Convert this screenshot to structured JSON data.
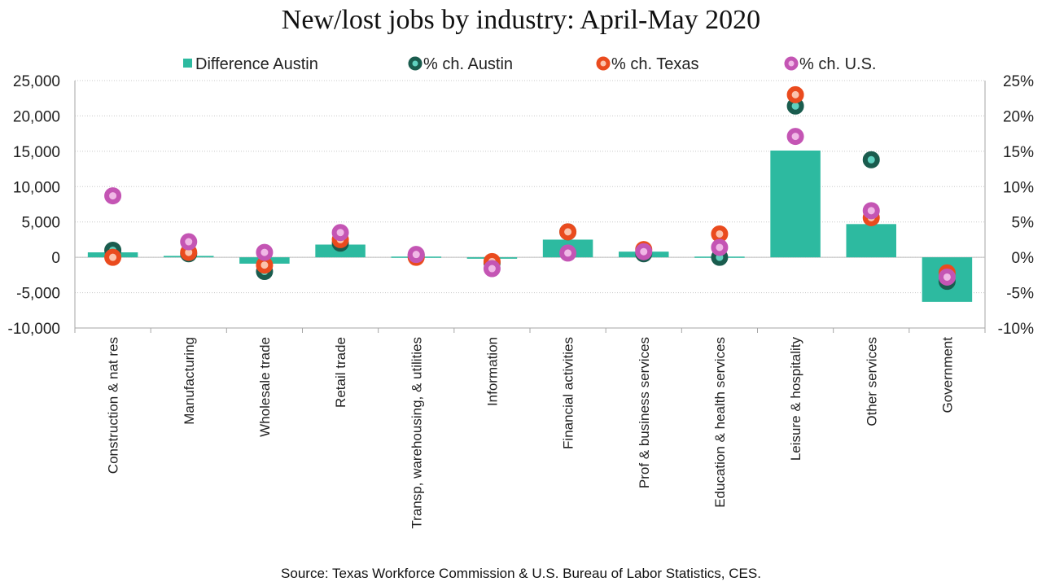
{
  "chart_data": {
    "type": "bar",
    "title": "New/lost jobs by industry: April-May 2020",
    "source": "Source: Texas Workforce Commission & U.S. Bureau of Labor Statistics, CES.",
    "categories": [
      "Construction & nat res",
      "Manufacturing",
      "Wholesale trade",
      "Retail trade",
      "Transp, warehousing, & utilities",
      "Information",
      "Financial activities",
      "Prof & business services",
      "Education & health services",
      "Leisure & hospitality",
      "Other services",
      "Government"
    ],
    "bar_series": {
      "name": "Difference Austin",
      "color": "#2dbaa0",
      "axis": "left",
      "values": [
        700,
        200,
        -900,
        1800,
        100,
        -200,
        2500,
        800,
        100,
        15100,
        4700,
        -6300
      ]
    },
    "point_series": [
      {
        "name": "% ch. Austin",
        "color": "#1a5c4e",
        "axis": "right",
        "values": [
          1.0,
          0.5,
          -2.0,
          2.0,
          0.3,
          -0.8,
          3.6,
          0.5,
          0.0,
          21.4,
          13.8,
          -3.4
        ]
      },
      {
        "name": "% ch. Texas",
        "color": "#ea4b1e",
        "axis": "right",
        "values": [
          0.0,
          0.7,
          -1.1,
          2.5,
          0.0,
          -0.6,
          3.6,
          1.1,
          3.3,
          23.0,
          5.6,
          -2.2
        ]
      },
      {
        "name": "% ch. U.S.",
        "color": "#c455b4",
        "axis": "right",
        "values": [
          8.7,
          2.2,
          0.7,
          3.5,
          0.4,
          -1.6,
          0.6,
          0.8,
          1.4,
          17.1,
          6.6,
          -2.8
        ]
      }
    ],
    "left_axis": {
      "ylim": [
        -10000,
        25000
      ],
      "ticks": [
        -10000,
        -5000,
        0,
        5000,
        10000,
        15000,
        20000,
        25000
      ],
      "tick_labels": [
        "-10,000",
        "-5,000",
        "0",
        "5,000",
        "10,000",
        "15,000",
        "20,000",
        "25,000"
      ]
    },
    "right_axis": {
      "ylim": [
        -10,
        25
      ],
      "ticks": [
        -10,
        -5,
        0,
        5,
        10,
        15,
        20,
        25
      ],
      "tick_labels": [
        "-10%",
        "-5%",
        "0%",
        "5%",
        "10%",
        "15%",
        "20%",
        "25%"
      ]
    },
    "grid": true,
    "legend_position": "top"
  }
}
